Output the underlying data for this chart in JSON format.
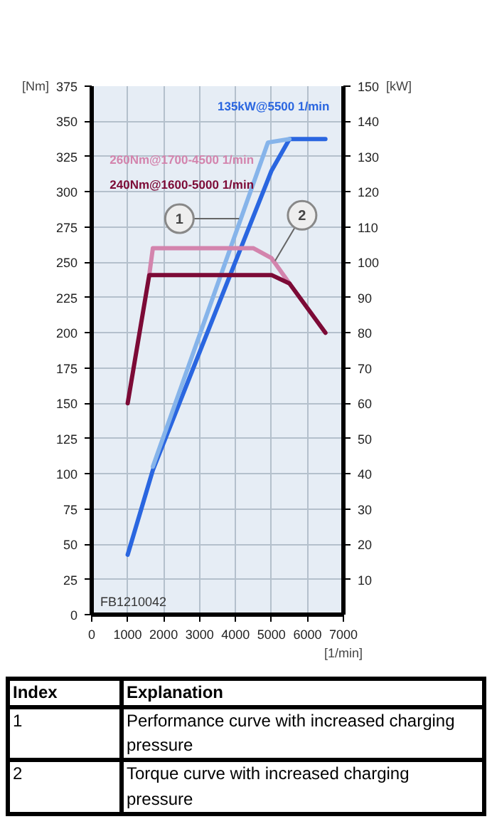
{
  "chart_data": {
    "type": "line",
    "xlabel": "[1/min]",
    "ylabel": "[Nm]",
    "y2label": "[kW]",
    "xlim": [
      0,
      7000
    ],
    "xticks": [
      0,
      1000,
      2000,
      3000,
      4000,
      5000,
      6000,
      7000
    ],
    "ylim": [
      0,
      375
    ],
    "yticks": [
      0,
      25,
      50,
      75,
      100,
      125,
      150,
      175,
      200,
      225,
      250,
      275,
      300,
      325,
      350,
      375
    ],
    "y2lim": [
      0,
      150
    ],
    "y2ticks": [
      10,
      20,
      30,
      40,
      50,
      60,
      70,
      80,
      90,
      100,
      110,
      120,
      130,
      140,
      150
    ],
    "grid": true,
    "series": [
      {
        "name": "135kW@5500 1/min",
        "color": "#2a66e0",
        "axis": "y2",
        "x": [
          1000,
          1700,
          5000,
          5500,
          6500
        ],
        "values": [
          17,
          41,
          126,
          135,
          135
        ]
      },
      {
        "color": "#86b4ea",
        "axis": "y2",
        "x": [
          1700,
          4900,
          5500
        ],
        "values": [
          42,
          134,
          135
        ]
      },
      {
        "name": "260Nm@1700-4500 1/min",
        "color": "#d384ad",
        "x": [
          1600,
          1700,
          4500,
          5000,
          5500
        ],
        "values": [
          241,
          260,
          260,
          253,
          235
        ]
      },
      {
        "name": "240Nm@1600-5000 1/min",
        "color": "#7c0a36",
        "x": [
          1000,
          1600,
          5000,
          5500,
          6500
        ],
        "values": [
          150,
          241,
          241,
          235,
          200
        ]
      }
    ],
    "annotations": [
      {
        "text": "1",
        "x": 4100,
        "y": 281
      },
      {
        "text": "2",
        "x": 5100,
        "y": 251
      },
      "FB1210042",
      "Index",
      "Explanation",
      "1",
      "Performance curve with increased charging pressure",
      "2",
      "Torque curve with increased charging pressure"
    ]
  }
}
